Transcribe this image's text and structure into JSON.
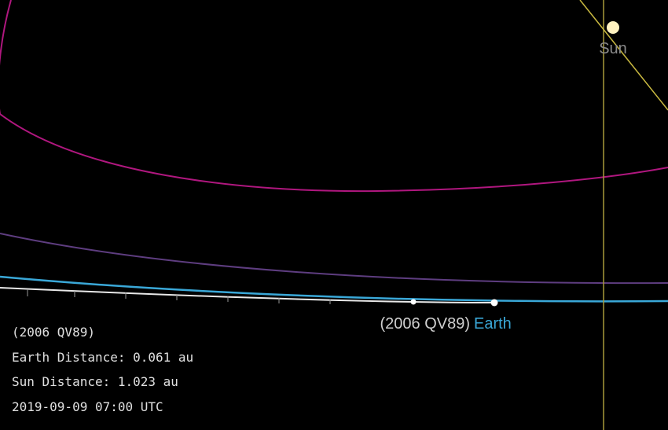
{
  "sun_label": "Sun",
  "object_label": "(2006 QV89)",
  "earth_label": "Earth",
  "info": {
    "name": "(2006 QV89)",
    "earth_distance": "Earth Distance: 0.061 au",
    "sun_distance": "Sun Distance: 1.023 au",
    "time": "2019-09-09 07:00 UTC"
  }
}
